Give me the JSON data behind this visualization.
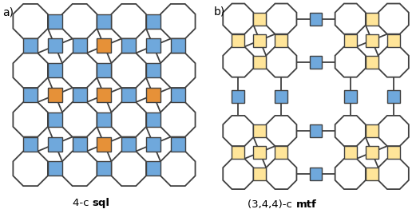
{
  "blue": "#6fa8dc",
  "orange": "#e69138",
  "yellow": "#ffe599",
  "white": "#ffffff",
  "edge_color": "#404040",
  "title_a": "4-c ",
  "title_a_bold": "sql",
  "title_b": "(3,4,4)-c ",
  "title_b_bold": "mtf",
  "label_a": "a)",
  "label_b": "b)"
}
